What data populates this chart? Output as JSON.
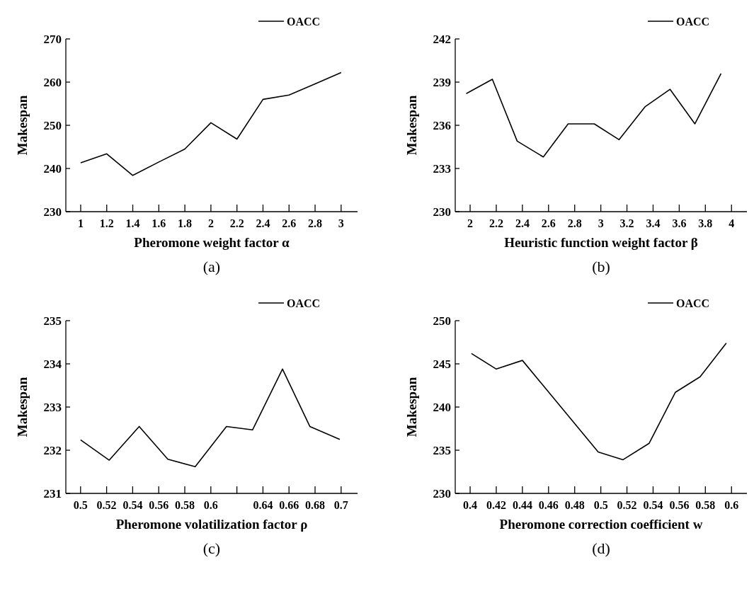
{
  "chart_data": [
    {
      "type": "line",
      "xlabel": "Pheromone weight factor α",
      "ylabel": "Makespan",
      "annotations": [
        "(a)"
      ],
      "legend": "top",
      "marker": "none",
      "line_style": "solid",
      "x": [
        1,
        1.2,
        1.4,
        1.6,
        1.8,
        2,
        2.2,
        2.4,
        2.6,
        2.8,
        3
      ],
      "series": [
        {
          "name": "OACC",
          "color": "#000000",
          "values": [
            241.3,
            243.4,
            238.4,
            241.5,
            244.5,
            250.6,
            246.8,
            256.0,
            257.0,
            259.6,
            262.2
          ]
        }
      ],
      "xlim": [
        0.886,
        3.126
      ],
      "xticks": [
        1,
        1.2,
        1.4,
        1.6,
        1.8,
        2,
        2.2,
        2.4,
        2.6,
        2.8,
        3
      ],
      "ylim": [
        230,
        270
      ],
      "yticks": [
        230,
        240,
        250,
        260,
        270
      ]
    },
    {
      "type": "line",
      "xlabel": "Heuristic function weight factor β",
      "ylabel": "Makespan",
      "annotations": [
        "(b)"
      ],
      "legend": "top",
      "marker": "none",
      "line_style": "solid",
      "x": [
        1.97,
        2.17,
        2.36,
        2.56,
        2.75,
        2.95,
        3.14,
        3.34,
        3.53,
        3.72,
        3.92
      ],
      "series": [
        {
          "name": "OACC",
          "color": "#000000",
          "values": [
            238.2,
            239.2,
            234.9,
            233.8,
            236.1,
            236.1,
            235.0,
            237.3,
            238.5,
            236.1,
            239.6
          ]
        }
      ],
      "xlim": [
        1.886,
        4.118
      ],
      "xticks": [
        2,
        2.2,
        2.4,
        2.6,
        2.8,
        3,
        3.2,
        3.4,
        3.6,
        3.8,
        4
      ],
      "ylim": [
        230,
        242
      ],
      "yticks": [
        230,
        233,
        236,
        239,
        242
      ]
    },
    {
      "type": "line",
      "xlabel": "Pheromone volatilization factor ρ",
      "ylabel": "Makespan",
      "annotations": [
        "(c)"
      ],
      "legend": "top",
      "marker": "none",
      "line_style": "solid",
      "x": [
        0.5,
        0.522,
        0.545,
        0.567,
        0.588,
        0.612,
        0.632,
        0.655,
        0.676,
        0.699
      ],
      "series": [
        {
          "name": "OACC",
          "color": "#000000",
          "values": [
            232.24,
            231.77,
            232.55,
            231.79,
            231.62,
            232.55,
            232.47,
            233.88,
            232.55,
            232.25
          ]
        }
      ],
      "xlim": [
        0.4887,
        0.7126
      ],
      "xticks": [
        0.5,
        0.52,
        0.54,
        0.56,
        0.58,
        0.6,
        {
          "value": 0.62,
          "label": null
        },
        0.64,
        0.66,
        0.68,
        0.7
      ],
      "ylim": [
        231,
        235
      ],
      "yticks": [
        231,
        232,
        233,
        234,
        235
      ]
    },
    {
      "type": "line",
      "xlabel": "Pheromone correction coefficient w",
      "ylabel": "Makespan",
      "annotations": [
        "(d)"
      ],
      "legend": "top",
      "marker": "none",
      "line_style": "solid",
      "x": [
        0.401,
        0.42,
        0.44,
        0.498,
        0.517,
        0.537,
        0.557,
        0.576,
        0.596
      ],
      "series": [
        {
          "name": "OACC",
          "color": "#000000",
          "values": [
            246.2,
            244.4,
            245.4,
            234.8,
            233.9,
            235.8,
            241.7,
            243.5,
            247.4
          ]
        }
      ],
      "xlim": [
        0.3886,
        0.6118
      ],
      "xticks": [
        0.4,
        0.42,
        0.44,
        0.46,
        0.48,
        0.5,
        0.52,
        0.54,
        0.56,
        0.58,
        0.6
      ],
      "ylim": [
        230,
        250
      ],
      "yticks": [
        230,
        235,
        240,
        245,
        250
      ]
    }
  ]
}
